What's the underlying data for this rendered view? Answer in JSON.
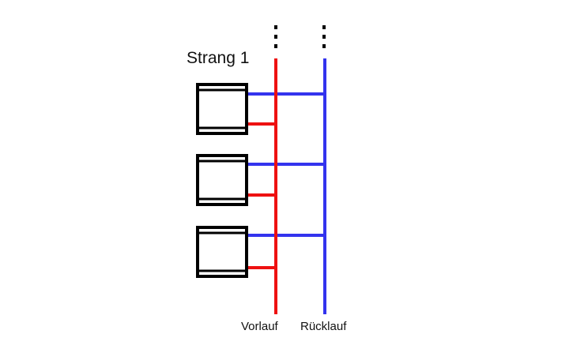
{
  "diagram": {
    "title": "Strang 1",
    "supply_label": "Vorlauf",
    "return_label": "Rücklauf",
    "supply_color": "#ee1111",
    "return_color": "#3333ee",
    "radiator_color": "#000000",
    "radiator_count": 3,
    "continuation_symbol": "⋮"
  }
}
